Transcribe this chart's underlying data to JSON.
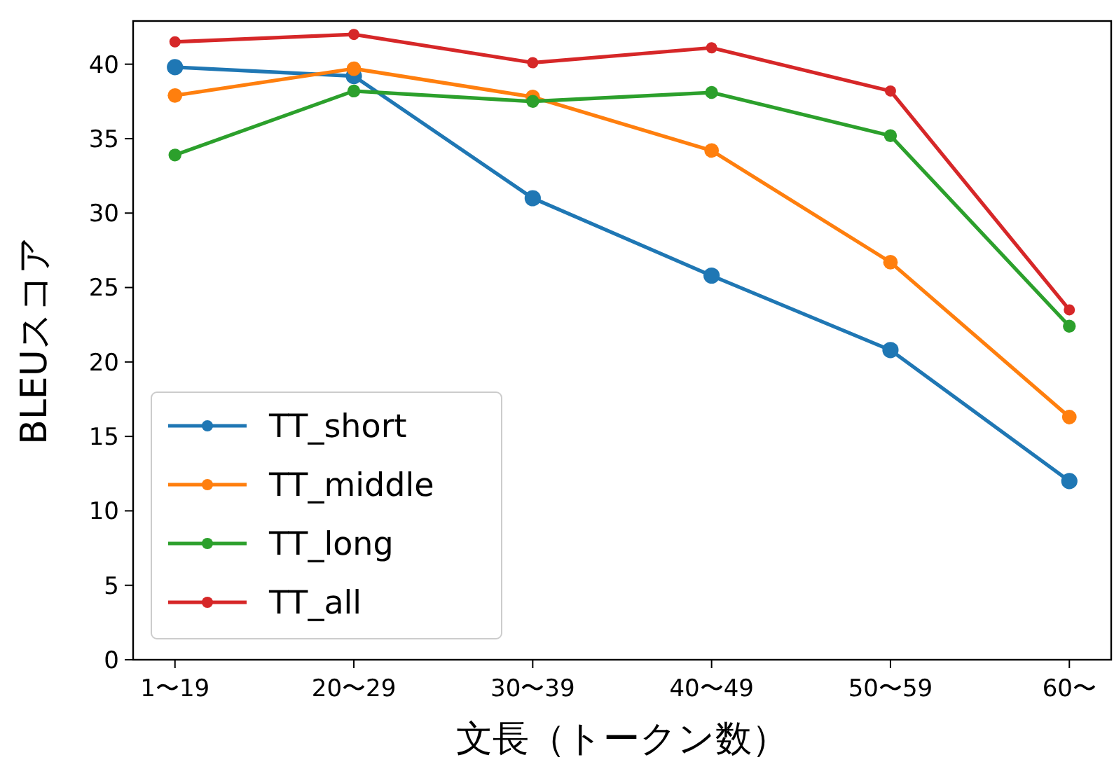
{
  "chart_data": {
    "type": "line",
    "xlabel": "文長（トークン数）",
    "ylabel": "BLEUスコア",
    "categories": [
      "1〜19",
      "20〜29",
      "30〜39",
      "40〜49",
      "50〜59",
      "60〜"
    ],
    "series": [
      {
        "name": "TT_short",
        "color": "#1f77b4",
        "values": [
          39.8,
          39.2,
          31.0,
          25.8,
          20.8,
          12.0
        ]
      },
      {
        "name": "TT_middle",
        "color": "#ff7f0e",
        "values": [
          37.9,
          39.7,
          37.8,
          34.2,
          26.7,
          16.3
        ]
      },
      {
        "name": "TT_long",
        "color": "#2ca02c",
        "values": [
          33.9,
          38.2,
          37.5,
          38.1,
          35.2,
          22.4
        ]
      },
      {
        "name": "TT_all",
        "color": "#d62728",
        "values": [
          41.5,
          42.0,
          40.1,
          41.1,
          38.2,
          23.5
        ]
      }
    ],
    "ylim": [
      0,
      42.9
    ],
    "yticks": [
      0,
      5,
      10,
      15,
      20,
      25,
      30,
      35,
      40
    ],
    "grid": false,
    "legend": "bottom left",
    "marker": "circle",
    "line_style": "solid"
  }
}
